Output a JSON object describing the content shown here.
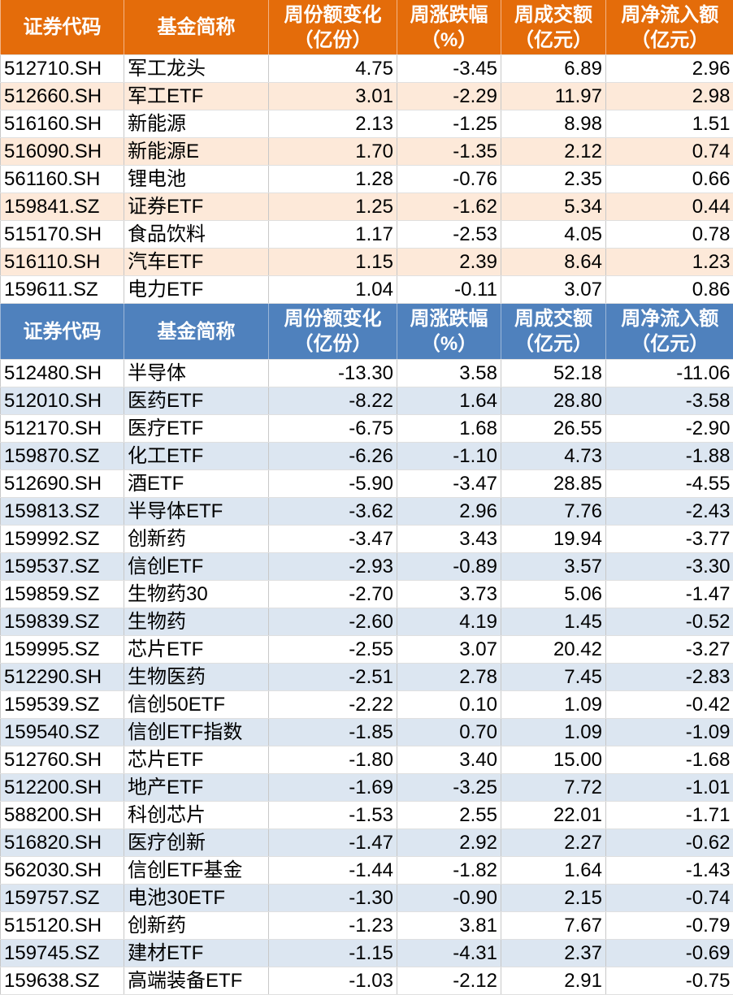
{
  "tables": [
    {
      "header": [
        [
          "证券代码"
        ],
        [
          "基金简称"
        ],
        [
          "周份额变化",
          "（亿份）"
        ],
        [
          "周涨跌幅",
          "（%）"
        ],
        [
          "周成交额",
          "（亿元）"
        ],
        [
          "周净流入额",
          "（亿元）"
        ]
      ],
      "rows": [
        [
          "512710.SH",
          "军工龙头",
          "4.75",
          "-3.45",
          "6.89",
          "2.96"
        ],
        [
          "512660.SH",
          "军工ETF",
          "3.01",
          "-2.29",
          "11.97",
          "2.98"
        ],
        [
          "516160.SH",
          "新能源",
          "2.13",
          "-1.25",
          "8.98",
          "1.51"
        ],
        [
          "516090.SH",
          "新能源E",
          "1.70",
          "-1.35",
          "2.12",
          "0.74"
        ],
        [
          "561160.SH",
          "锂电池",
          "1.28",
          "-0.76",
          "2.35",
          "0.66"
        ],
        [
          "159841.SZ",
          "证券ETF",
          "1.25",
          "-1.62",
          "5.34",
          "0.44"
        ],
        [
          "515170.SH",
          "食品饮料",
          "1.17",
          "-2.53",
          "4.05",
          "0.78"
        ],
        [
          "516110.SH",
          "汽车ETF",
          "1.15",
          "2.39",
          "8.64",
          "1.23"
        ],
        [
          "159611.SZ",
          "电力ETF",
          "1.04",
          "-0.11",
          "3.07",
          "0.86"
        ]
      ]
    },
    {
      "header": [
        [
          "证券代码"
        ],
        [
          "基金简称"
        ],
        [
          "周份额变化",
          "（亿份）"
        ],
        [
          "周涨跌幅",
          "（%）"
        ],
        [
          "周成交额",
          "（亿元）"
        ],
        [
          "周净流入额",
          "（亿元）"
        ]
      ],
      "rows": [
        [
          "512480.SH",
          "半导体",
          "-13.30",
          "3.58",
          "52.18",
          "-11.06"
        ],
        [
          "512010.SH",
          "医药ETF",
          "-8.22",
          "1.64",
          "28.80",
          "-3.58"
        ],
        [
          "512170.SH",
          "医疗ETF",
          "-6.75",
          "1.68",
          "26.55",
          "-2.90"
        ],
        [
          "159870.SZ",
          "化工ETF",
          "-6.26",
          "-1.10",
          "4.73",
          "-1.88"
        ],
        [
          "512690.SH",
          "酒ETF",
          "-5.90",
          "-3.47",
          "28.85",
          "-4.55"
        ],
        [
          "159813.SZ",
          "半导体ETF",
          "-3.62",
          "2.96",
          "7.76",
          "-2.43"
        ],
        [
          "159992.SZ",
          "创新药",
          "-3.47",
          "3.43",
          "19.94",
          "-3.77"
        ],
        [
          "159537.SZ",
          "信创ETF",
          "-2.93",
          "-0.89",
          "3.57",
          "-3.30"
        ],
        [
          "159859.SZ",
          "生物药30",
          "-2.70",
          "3.73",
          "5.06",
          "-1.47"
        ],
        [
          "159839.SZ",
          "生物药",
          "-2.60",
          "4.19",
          "1.45",
          "-0.52"
        ],
        [
          "159995.SZ",
          "芯片ETF",
          "-2.55",
          "3.07",
          "20.42",
          "-3.27"
        ],
        [
          "512290.SH",
          "生物医药",
          "-2.51",
          "2.78",
          "7.45",
          "-2.83"
        ],
        [
          "159539.SZ",
          "信创50ETF",
          "-2.22",
          "0.10",
          "1.09",
          "-0.42"
        ],
        [
          "159540.SZ",
          "信创ETF指数",
          "-1.85",
          "0.70",
          "1.09",
          "-1.09"
        ],
        [
          "512760.SH",
          "芯片ETF",
          "-1.80",
          "3.40",
          "15.00",
          "-1.68"
        ],
        [
          "512200.SH",
          "地产ETF",
          "-1.69",
          "-3.25",
          "7.72",
          "-1.01"
        ],
        [
          "588200.SH",
          "科创芯片",
          "-1.53",
          "2.55",
          "22.01",
          "-1.71"
        ],
        [
          "516820.SH",
          "医疗创新",
          "-1.47",
          "2.92",
          "2.27",
          "-0.62"
        ],
        [
          "562030.SH",
          "信创ETF基金",
          "-1.44",
          "-1.82",
          "1.64",
          "-1.43"
        ],
        [
          "159757.SZ",
          "电池30ETF",
          "-1.30",
          "-0.90",
          "2.15",
          "-0.74"
        ],
        [
          "515120.SH",
          "创新药",
          "-1.23",
          "3.81",
          "7.67",
          "-0.79"
        ],
        [
          "159745.SZ",
          "建材ETF",
          "-1.15",
          "-4.31",
          "2.37",
          "-0.69"
        ],
        [
          "159638.SZ",
          "高端装备ETF",
          "-1.03",
          "-2.12",
          "2.91",
          "-0.75"
        ]
      ]
    }
  ]
}
